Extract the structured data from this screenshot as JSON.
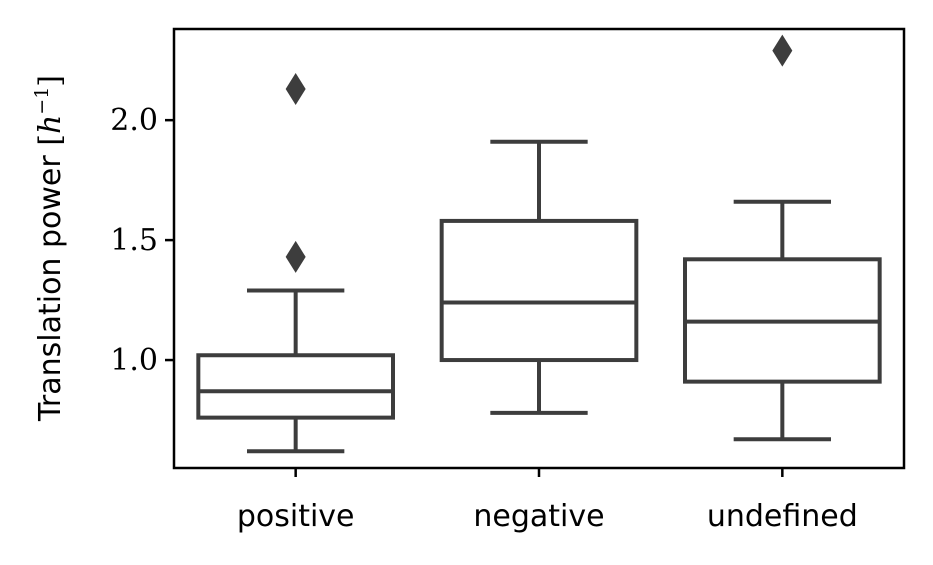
{
  "chart_data": {
    "type": "box",
    "ylabel": "Translation power [h⁻¹]",
    "ylabel_parts": {
      "text": "Translation power ",
      "open": "[",
      "var": "h",
      "exp": "−1",
      "close": "]"
    },
    "ylim": [
      0.55,
      2.38
    ],
    "yticks": [
      1.0,
      1.5,
      2.0
    ],
    "ytick_labels": [
      "1.0",
      "1.5",
      "2.0"
    ],
    "grid": false,
    "colors": {
      "stroke": "#3d3d3d",
      "fill": "#ffffff",
      "axis": "#000000"
    },
    "categories": [
      "positive",
      "negative",
      "undefined"
    ],
    "boxes": [
      {
        "category": "positive",
        "whisker_low": 0.62,
        "q1": 0.76,
        "median": 0.87,
        "q3": 1.02,
        "whisker_high": 1.29,
        "outliers": [
          1.43,
          2.13
        ]
      },
      {
        "category": "negative",
        "whisker_low": 0.78,
        "q1": 1.0,
        "median": 1.24,
        "q3": 1.58,
        "whisker_high": 1.91,
        "outliers": []
      },
      {
        "category": "undefined",
        "whisker_low": 0.67,
        "q1": 0.91,
        "median": 1.16,
        "q3": 1.42,
        "whisker_high": 1.66,
        "outliers": [
          2.29
        ]
      }
    ]
  }
}
